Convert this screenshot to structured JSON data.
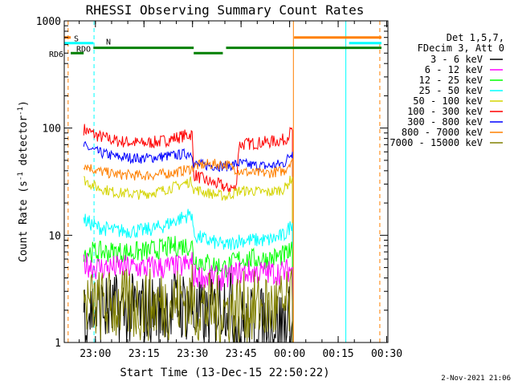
{
  "chart_data": {
    "type": "line",
    "title": "RHESSI Observing Summary Count Rates",
    "xlabel": "Start Time (13-Dec-15 22:50:22)",
    "ylabel": "Count Rate (s⁻¹ detector⁻¹)",
    "ylabel_main": "Count Rate (s",
    "ylabel_sup1": "-1",
    "ylabel_mid": " detector",
    "ylabel_sup2": "-1",
    "ylabel_end": ")",
    "yscale": "log",
    "ylim": [
      1,
      1000
    ],
    "xlim_minutes": [
      0,
      100
    ],
    "x_ticks": [
      {
        "label": "23:00",
        "t": 9.63
      },
      {
        "label": "23:15",
        "t": 24.63
      },
      {
        "label": "23:30",
        "t": 39.63
      },
      {
        "label": "23:45",
        "t": 54.63
      },
      {
        "label": "00:00",
        "t": 69.63
      },
      {
        "label": "00:15",
        "t": 84.63
      },
      {
        "label": "00:30",
        "t": 99.63
      }
    ],
    "y_ticks": [
      {
        "label": "1",
        "v": 1
      },
      {
        "label": "10",
        "v": 10
      },
      {
        "label": "100",
        "v": 100
      },
      {
        "label": "1000",
        "v": 1000
      }
    ],
    "legend": {
      "position": "right",
      "header": [
        "Det 1,5,7,",
        "FDecim 3, Att 0"
      ],
      "entries": [
        {
          "label": "3 - 6 keV",
          "color": "#000000"
        },
        {
          "label": "6 - 12 keV",
          "color": "#ff00ff"
        },
        {
          "label": "12 - 25 keV",
          "color": "#00ff00"
        },
        {
          "label": "25 - 50 keV",
          "color": "#00ffff"
        },
        {
          "label": "50 - 100 keV",
          "color": "#d4d400"
        },
        {
          "label": "100 - 300 keV",
          "color": "#ff0000"
        },
        {
          "label": "300 - 800 keV",
          "color": "#0000ff"
        },
        {
          "label": "800 - 7000 keV",
          "color": "#ff8000"
        },
        {
          "label": "7000 - 15000 keV",
          "color": "#808000"
        }
      ]
    },
    "series": [
      {
        "name": "100 - 300 keV",
        "color": "#ff0000",
        "points": [
          [
            6,
            98
          ],
          [
            10,
            85
          ],
          [
            16,
            76
          ],
          [
            24,
            72
          ],
          [
            30,
            75
          ],
          [
            35,
            82
          ],
          [
            39.5,
            88
          ],
          [
            40,
            37
          ],
          [
            44,
            32
          ],
          [
            49,
            29
          ],
          [
            50,
            27
          ],
          [
            51,
            28
          ],
          [
            53,
            27
          ],
          [
            54,
            70
          ],
          [
            58,
            72
          ],
          [
            63,
            74
          ],
          [
            68,
            78
          ],
          [
            70.5,
            95
          ]
        ]
      },
      {
        "name": "300 - 800 keV",
        "color": "#0000ff",
        "points": [
          [
            6,
            68
          ],
          [
            10,
            60
          ],
          [
            16,
            54
          ],
          [
            24,
            52
          ],
          [
            30,
            54
          ],
          [
            35,
            56
          ],
          [
            39.5,
            59
          ],
          [
            40,
            46
          ],
          [
            44,
            45
          ],
          [
            50,
            44
          ],
          [
            54,
            47
          ],
          [
            58,
            45
          ],
          [
            63,
            44
          ],
          [
            68,
            47
          ],
          [
            70.5,
            60
          ]
        ]
      },
      {
        "name": "800 - 7000 keV",
        "color": "#ff8000",
        "points": [
          [
            6,
            46
          ],
          [
            10,
            40
          ],
          [
            16,
            37
          ],
          [
            24,
            36
          ],
          [
            30,
            37
          ],
          [
            35,
            39
          ],
          [
            39.5,
            42
          ],
          [
            40,
            44
          ],
          [
            44,
            46
          ],
          [
            50,
            46
          ],
          [
            54,
            40
          ],
          [
            58,
            38
          ],
          [
            63,
            38
          ],
          [
            68,
            40
          ],
          [
            70.5,
            52
          ]
        ]
      },
      {
        "name": "50 - 100 keV",
        "color": "#d4d400",
        "points": [
          [
            6,
            33
          ],
          [
            10,
            28
          ],
          [
            16,
            25
          ],
          [
            24,
            24
          ],
          [
            30,
            26
          ],
          [
            35,
            29
          ],
          [
            39.5,
            32
          ],
          [
            40,
            27
          ],
          [
            44,
            25
          ],
          [
            50,
            23
          ],
          [
            54,
            26
          ],
          [
            58,
            26
          ],
          [
            63,
            25
          ],
          [
            68,
            27
          ],
          [
            70.5,
            35
          ]
        ]
      },
      {
        "name": "25 - 50 keV",
        "color": "#00ffff",
        "points": [
          [
            6,
            14
          ],
          [
            10,
            12
          ],
          [
            16,
            11
          ],
          [
            24,
            11
          ],
          [
            30,
            12
          ],
          [
            35,
            14
          ],
          [
            39.5,
            16
          ],
          [
            40,
            10
          ],
          [
            44,
            9
          ],
          [
            50,
            8
          ],
          [
            54,
            9
          ],
          [
            58,
            9
          ],
          [
            63,
            9
          ],
          [
            68,
            10
          ],
          [
            70.5,
            13
          ]
        ]
      },
      {
        "name": "12 - 25 keV",
        "color": "#00ff00",
        "points": [
          [
            6,
            7
          ],
          [
            10,
            7
          ],
          [
            16,
            7
          ],
          [
            24,
            7
          ],
          [
            30,
            7.5
          ],
          [
            35,
            8
          ],
          [
            39.5,
            8
          ],
          [
            40,
            6
          ],
          [
            44,
            5.5
          ],
          [
            50,
            5
          ],
          [
            54,
            6
          ],
          [
            58,
            6
          ],
          [
            63,
            6
          ],
          [
            68,
            6.5
          ],
          [
            70.5,
            7
          ]
        ]
      },
      {
        "name": "6 - 12 keV",
        "color": "#ff00ff",
        "points": [
          [
            6,
            5.5
          ],
          [
            10,
            5
          ],
          [
            16,
            5
          ],
          [
            24,
            5
          ],
          [
            30,
            5
          ],
          [
            35,
            5
          ],
          [
            39.5,
            5.5
          ],
          [
            40,
            4.2
          ],
          [
            44,
            4
          ],
          [
            50,
            4
          ],
          [
            54,
            4.5
          ],
          [
            58,
            4.5
          ],
          [
            63,
            4.5
          ],
          [
            68,
            4.5
          ],
          [
            70.5,
            5
          ]
        ]
      },
      {
        "name": "3 - 6 keV",
        "color": "#000000",
        "points": [
          [
            6,
            2
          ],
          [
            10,
            2
          ],
          [
            16,
            2
          ],
          [
            24,
            2
          ],
          [
            30,
            2
          ],
          [
            35,
            2.2
          ],
          [
            39.5,
            2.2
          ],
          [
            40,
            1.8
          ],
          [
            44,
            1.6
          ],
          [
            50,
            2.5
          ],
          [
            54,
            1.5
          ],
          [
            58,
            1.5
          ],
          [
            63,
            1.5
          ],
          [
            68,
            1.5
          ],
          [
            70.5,
            1.6
          ]
        ]
      },
      {
        "name": "7000 - 15000 keV",
        "color": "#808000",
        "points": [
          [
            6,
            2.3
          ],
          [
            10,
            2.2
          ],
          [
            16,
            2.2
          ],
          [
            24,
            2.2
          ],
          [
            30,
            2.3
          ],
          [
            35,
            2.4
          ],
          [
            39.5,
            2.5
          ],
          [
            40,
            2.2
          ],
          [
            44,
            2.1
          ],
          [
            50,
            2
          ],
          [
            54,
            2.1
          ],
          [
            58,
            2.1
          ],
          [
            63,
            2.1
          ],
          [
            68,
            2.1
          ],
          [
            70.5,
            2.2
          ]
        ]
      }
    ],
    "state_bars": [
      {
        "label": "S",
        "color": "#ff8000",
        "value": 700,
        "segments": [
          [
            0,
            2
          ],
          [
            71,
            98
          ]
        ]
      },
      {
        "label": "N",
        "color": "#00ffff",
        "value": 620,
        "segments": [
          [
            0,
            9
          ]
        ],
        "extra_segments": [
          [
            88,
            98
          ]
        ]
      },
      {
        "label": "RDO",
        "color": "#008000",
        "value": 560,
        "segments": [
          [
            9,
            40
          ],
          [
            50,
            98
          ]
        ]
      },
      {
        "label": "RD6",
        "color": "#008000",
        "value": 500,
        "segments": [
          [
            2,
            6
          ],
          [
            40,
            49
          ]
        ]
      }
    ],
    "verticals": [
      {
        "t": 0,
        "color": "#00ffff",
        "style": "solid"
      },
      {
        "t": 1.2,
        "color": "#ff8000",
        "style": "dashed"
      },
      {
        "t": 9.2,
        "color": "#00ffff",
        "style": "dashed"
      },
      {
        "t": 70.8,
        "color": "#ff8000",
        "style": "solid"
      },
      {
        "t": 87,
        "color": "#00ffff",
        "style": "solid"
      },
      {
        "t": 97.5,
        "color": "#ff8000",
        "style": "dashed"
      }
    ]
  },
  "footer": {
    "date": "2-Nov-2021 21:06"
  }
}
